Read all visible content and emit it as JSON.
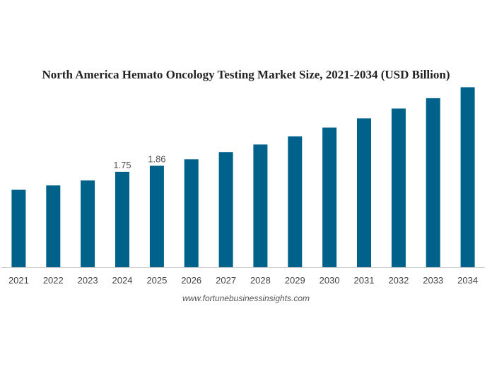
{
  "chart_data": {
    "type": "bar",
    "title": "North America Hemato Oncology Testing Market Size, 2021-2034 (USD Billion)",
    "xlabel": "",
    "ylabel": "",
    "categories": [
      "2021",
      "2022",
      "2023",
      "2024",
      "2025",
      "2026",
      "2027",
      "2028",
      "2029",
      "2030",
      "2031",
      "2032",
      "2033",
      "2034"
    ],
    "values": [
      1.42,
      1.5,
      1.59,
      1.75,
      1.86,
      1.98,
      2.11,
      2.25,
      2.4,
      2.56,
      2.73,
      2.91,
      3.1,
      3.3
    ],
    "data_labels": [
      {
        "index": 3,
        "text": "1.75"
      },
      {
        "index": 4,
        "text": "1.86"
      }
    ],
    "ylim": [
      0,
      3.5
    ],
    "grid": false,
    "legend": "none",
    "bar_color": "#00628b",
    "axis_color": "#cccccc"
  },
  "source": "www.fortunebusinessinsights.com"
}
